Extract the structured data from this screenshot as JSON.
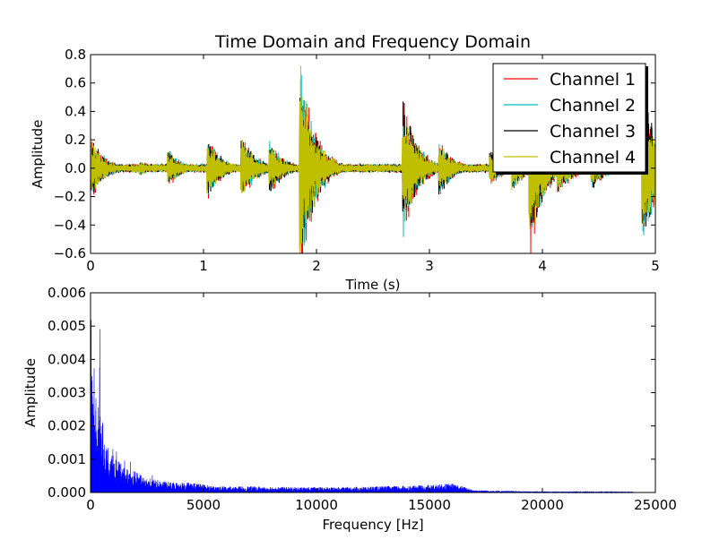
{
  "chart_data": [
    {
      "type": "line",
      "title": "Time Domain and Frequency Domain",
      "xlabel": "Time (s)",
      "ylabel": "Amplitude",
      "xlim": [
        0,
        5
      ],
      "ylim": [
        -0.6,
        0.8
      ],
      "xticks": [
        "0",
        "1",
        "2",
        "3",
        "4",
        "5"
      ],
      "yticks": [
        "−0.6",
        "−0.4",
        "−0.2",
        "0.0",
        "0.2",
        "0.4",
        "0.6",
        "0.8"
      ],
      "legend_position": "top-right",
      "series": [
        {
          "name": "Channel 1",
          "color": "#ff0000"
        },
        {
          "name": "Channel 2",
          "color": "#00bfbf"
        },
        {
          "name": "Channel 3",
          "color": "#000000"
        },
        {
          "name": "Channel 4",
          "color": "#bfbf00"
        }
      ],
      "events": [
        {
          "t": 0.02,
          "peak": 0.2
        },
        {
          "t": 0.45,
          "peak": 0.05
        },
        {
          "t": 0.7,
          "peak": 0.12
        },
        {
          "t": 1.05,
          "peak": 0.2
        },
        {
          "t": 1.35,
          "peak": 0.22
        },
        {
          "t": 1.6,
          "peak": 0.18
        },
        {
          "t": 1.87,
          "peak": 0.72
        },
        {
          "t": 2.78,
          "peak": 0.45
        },
        {
          "t": 3.1,
          "peak": 0.18
        },
        {
          "t": 3.55,
          "peak": 0.12
        },
        {
          "t": 3.75,
          "peak": 0.15
        },
        {
          "t": 3.9,
          "peak": 0.55
        },
        {
          "t": 4.15,
          "peak": 0.2
        },
        {
          "t": 4.45,
          "peak": 0.15
        },
        {
          "t": 4.9,
          "peak": 0.55
        }
      ]
    },
    {
      "type": "area",
      "xlabel": "Frequency [Hz]",
      "ylabel": "Amplitude",
      "xlim": [
        0,
        25000
      ],
      "ylim": [
        0,
        0.006
      ],
      "xticks": [
        "0",
        "5000",
        "10000",
        "15000",
        "20000",
        "25000"
      ],
      "yticks": [
        "0.000",
        "0.001",
        "0.002",
        "0.003",
        "0.004",
        "0.005",
        "0.006"
      ],
      "series": [
        {
          "color": "#0000ff"
        }
      ],
      "spectrum_envelope": [
        {
          "f": 0,
          "a": 0.0056
        },
        {
          "f": 100,
          "a": 0.0034
        },
        {
          "f": 200,
          "a": 0.003
        },
        {
          "f": 300,
          "a": 0.0012
        },
        {
          "f": 400,
          "a": 0.0045
        },
        {
          "f": 500,
          "a": 0.0018
        },
        {
          "f": 700,
          "a": 0.0012
        },
        {
          "f": 1000,
          "a": 0.0009
        },
        {
          "f": 1500,
          "a": 0.0006
        },
        {
          "f": 2000,
          "a": 0.0005
        },
        {
          "f": 2500,
          "a": 0.00035
        },
        {
          "f": 3500,
          "a": 0.00025
        },
        {
          "f": 4500,
          "a": 0.00025
        },
        {
          "f": 5500,
          "a": 0.00015
        },
        {
          "f": 7000,
          "a": 0.00015
        },
        {
          "f": 9000,
          "a": 0.00013
        },
        {
          "f": 11000,
          "a": 0.00013
        },
        {
          "f": 13000,
          "a": 0.00015
        },
        {
          "f": 15000,
          "a": 0.00018
        },
        {
          "f": 16000,
          "a": 0.00022
        },
        {
          "f": 17000,
          "a": 6e-05
        },
        {
          "f": 20000,
          "a": 2e-05
        },
        {
          "f": 24000,
          "a": 1e-05
        }
      ],
      "spectrum_end": 24000
    }
  ]
}
